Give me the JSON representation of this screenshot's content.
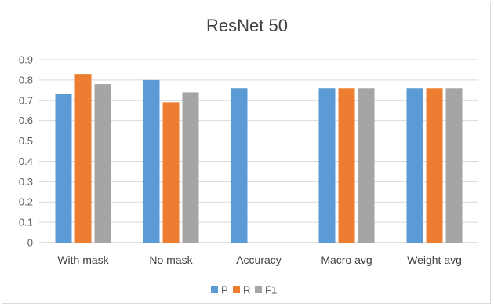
{
  "chart_data": {
    "type": "bar",
    "title": "ResNet 50",
    "xlabel": "",
    "ylabel": "",
    "categories": [
      "With mask",
      "No mask",
      "Accuracy",
      "Macro avg",
      "Weight avg"
    ],
    "series": [
      {
        "name": "P",
        "color": "#5b9bd5",
        "values": [
          0.73,
          0.8,
          0.76,
          0.76,
          0.76
        ]
      },
      {
        "name": "R",
        "color": "#ed7d31",
        "values": [
          0.83,
          0.69,
          null,
          0.76,
          0.76
        ]
      },
      {
        "name": "F1",
        "color": "#a5a5a5",
        "values": [
          0.78,
          0.74,
          null,
          0.76,
          0.76
        ]
      }
    ],
    "ylim": [
      0,
      0.9
    ],
    "yticks": [
      "0",
      "0.1",
      "0.2",
      "0.3",
      "0.4",
      "0.5",
      "0.6",
      "0.7",
      "0.8",
      "0.9"
    ],
    "grid": true,
    "legend_position": "bottom"
  }
}
